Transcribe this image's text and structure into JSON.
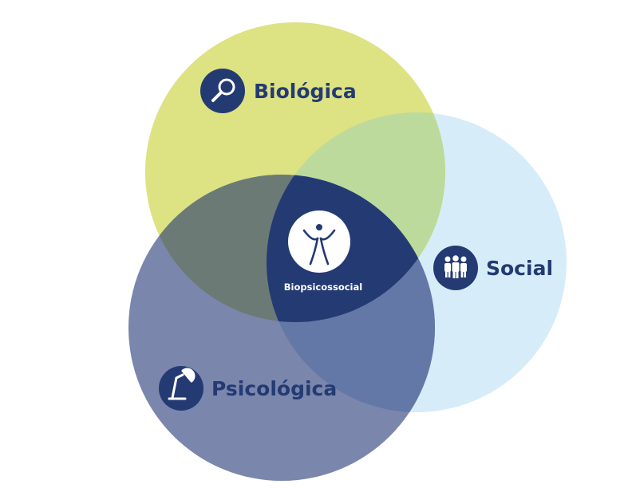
{
  "colors": {
    "biologica": "#dde283",
    "social": "#d6ecf8",
    "psicologica": "#7b86ad",
    "overlap_bio_soc": "#bcda9b",
    "overlap_bio_psi": "#6c7a76",
    "overlap_soc_psi": "#6378a7",
    "center": "#243a73",
    "icon_bg": "#243a73",
    "label_text": "#243a73"
  },
  "labels": {
    "biologica": "Biológica",
    "social": "Social",
    "psicologica": "Psicológica",
    "center": "Biopsicossocial"
  },
  "icons": {
    "biologica": "magnifier-icon",
    "social": "people-group-icon",
    "psicologica": "desk-lamp-icon",
    "center": "person-arms-raised-icon"
  }
}
